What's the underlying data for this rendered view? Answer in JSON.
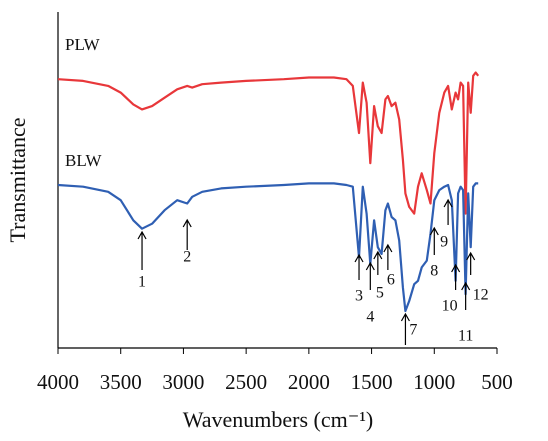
{
  "chart_data": {
    "type": "line",
    "x_label": "Wavenumbers (cm⁻¹)",
    "y_label": "Transmittance",
    "xlim": [
      4000,
      500
    ],
    "ylim": [
      0,
      100
    ],
    "xticks": [
      4000,
      3500,
      3000,
      2500,
      2000,
      1500,
      1000,
      500
    ],
    "x": [
      4000,
      3800,
      3600,
      3500,
      3400,
      3330,
      3250,
      3150,
      3050,
      2970,
      2930,
      2850,
      2700,
      2500,
      2200,
      2000,
      1800,
      1700,
      1650,
      1600,
      1570,
      1540,
      1510,
      1480,
      1450,
      1420,
      1390,
      1370,
      1340,
      1310,
      1280,
      1250,
      1230,
      1200,
      1160,
      1130,
      1100,
      1060,
      1030,
      1000,
      960,
      920,
      890,
      860,
      830,
      810,
      790,
      770,
      750,
      730,
      710,
      690,
      670,
      650
    ],
    "series": [
      {
        "name": "PLW",
        "color": "#e8373a",
        "values": [
          80,
          79.5,
          78,
          76,
          72.5,
          71,
          72,
          74.5,
          77,
          78,
          77.5,
          78.5,
          79,
          79.5,
          80,
          80.5,
          80.5,
          80,
          78,
          64,
          79,
          73,
          55,
          72,
          66,
          64,
          74,
          75,
          72,
          73,
          68,
          56,
          46,
          42,
          40,
          48,
          52,
          47,
          43,
          58,
          70,
          76,
          78,
          71,
          76,
          74,
          79,
          78,
          40,
          79,
          70,
          81,
          82,
          81
        ]
      },
      {
        "name": "BLW",
        "color": "#2f5fb3",
        "values": [
          48.5,
          48,
          46.5,
          44,
          38,
          35.5,
          37,
          41,
          44,
          43,
          45,
          46.5,
          47.5,
          48,
          48.5,
          49,
          49,
          48.5,
          48,
          27,
          48,
          40,
          25,
          38,
          30,
          28,
          41,
          43,
          39,
          38,
          32,
          18,
          11,
          14,
          19,
          20,
          24,
          26,
          34,
          44,
          47,
          48,
          48.5,
          44,
          20,
          46,
          48,
          47,
          16,
          46,
          30,
          48,
          49,
          49
        ]
      }
    ],
    "annotations": [
      {
        "text": "1",
        "x": 3330
      },
      {
        "text": "2",
        "x": 2970
      },
      {
        "text": "3",
        "x": 1600
      },
      {
        "text": "4",
        "x": 1510
      },
      {
        "text": "5",
        "x": 1450
      },
      {
        "text": "6",
        "x": 1370
      },
      {
        "text": "7",
        "x": 1230
      },
      {
        "text": "8",
        "x": 1000
      },
      {
        "text": "9",
        "x": 890
      },
      {
        "text": "10",
        "x": 830
      },
      {
        "text": "11",
        "x": 750
      },
      {
        "text": "12",
        "x": 710
      }
    ]
  }
}
